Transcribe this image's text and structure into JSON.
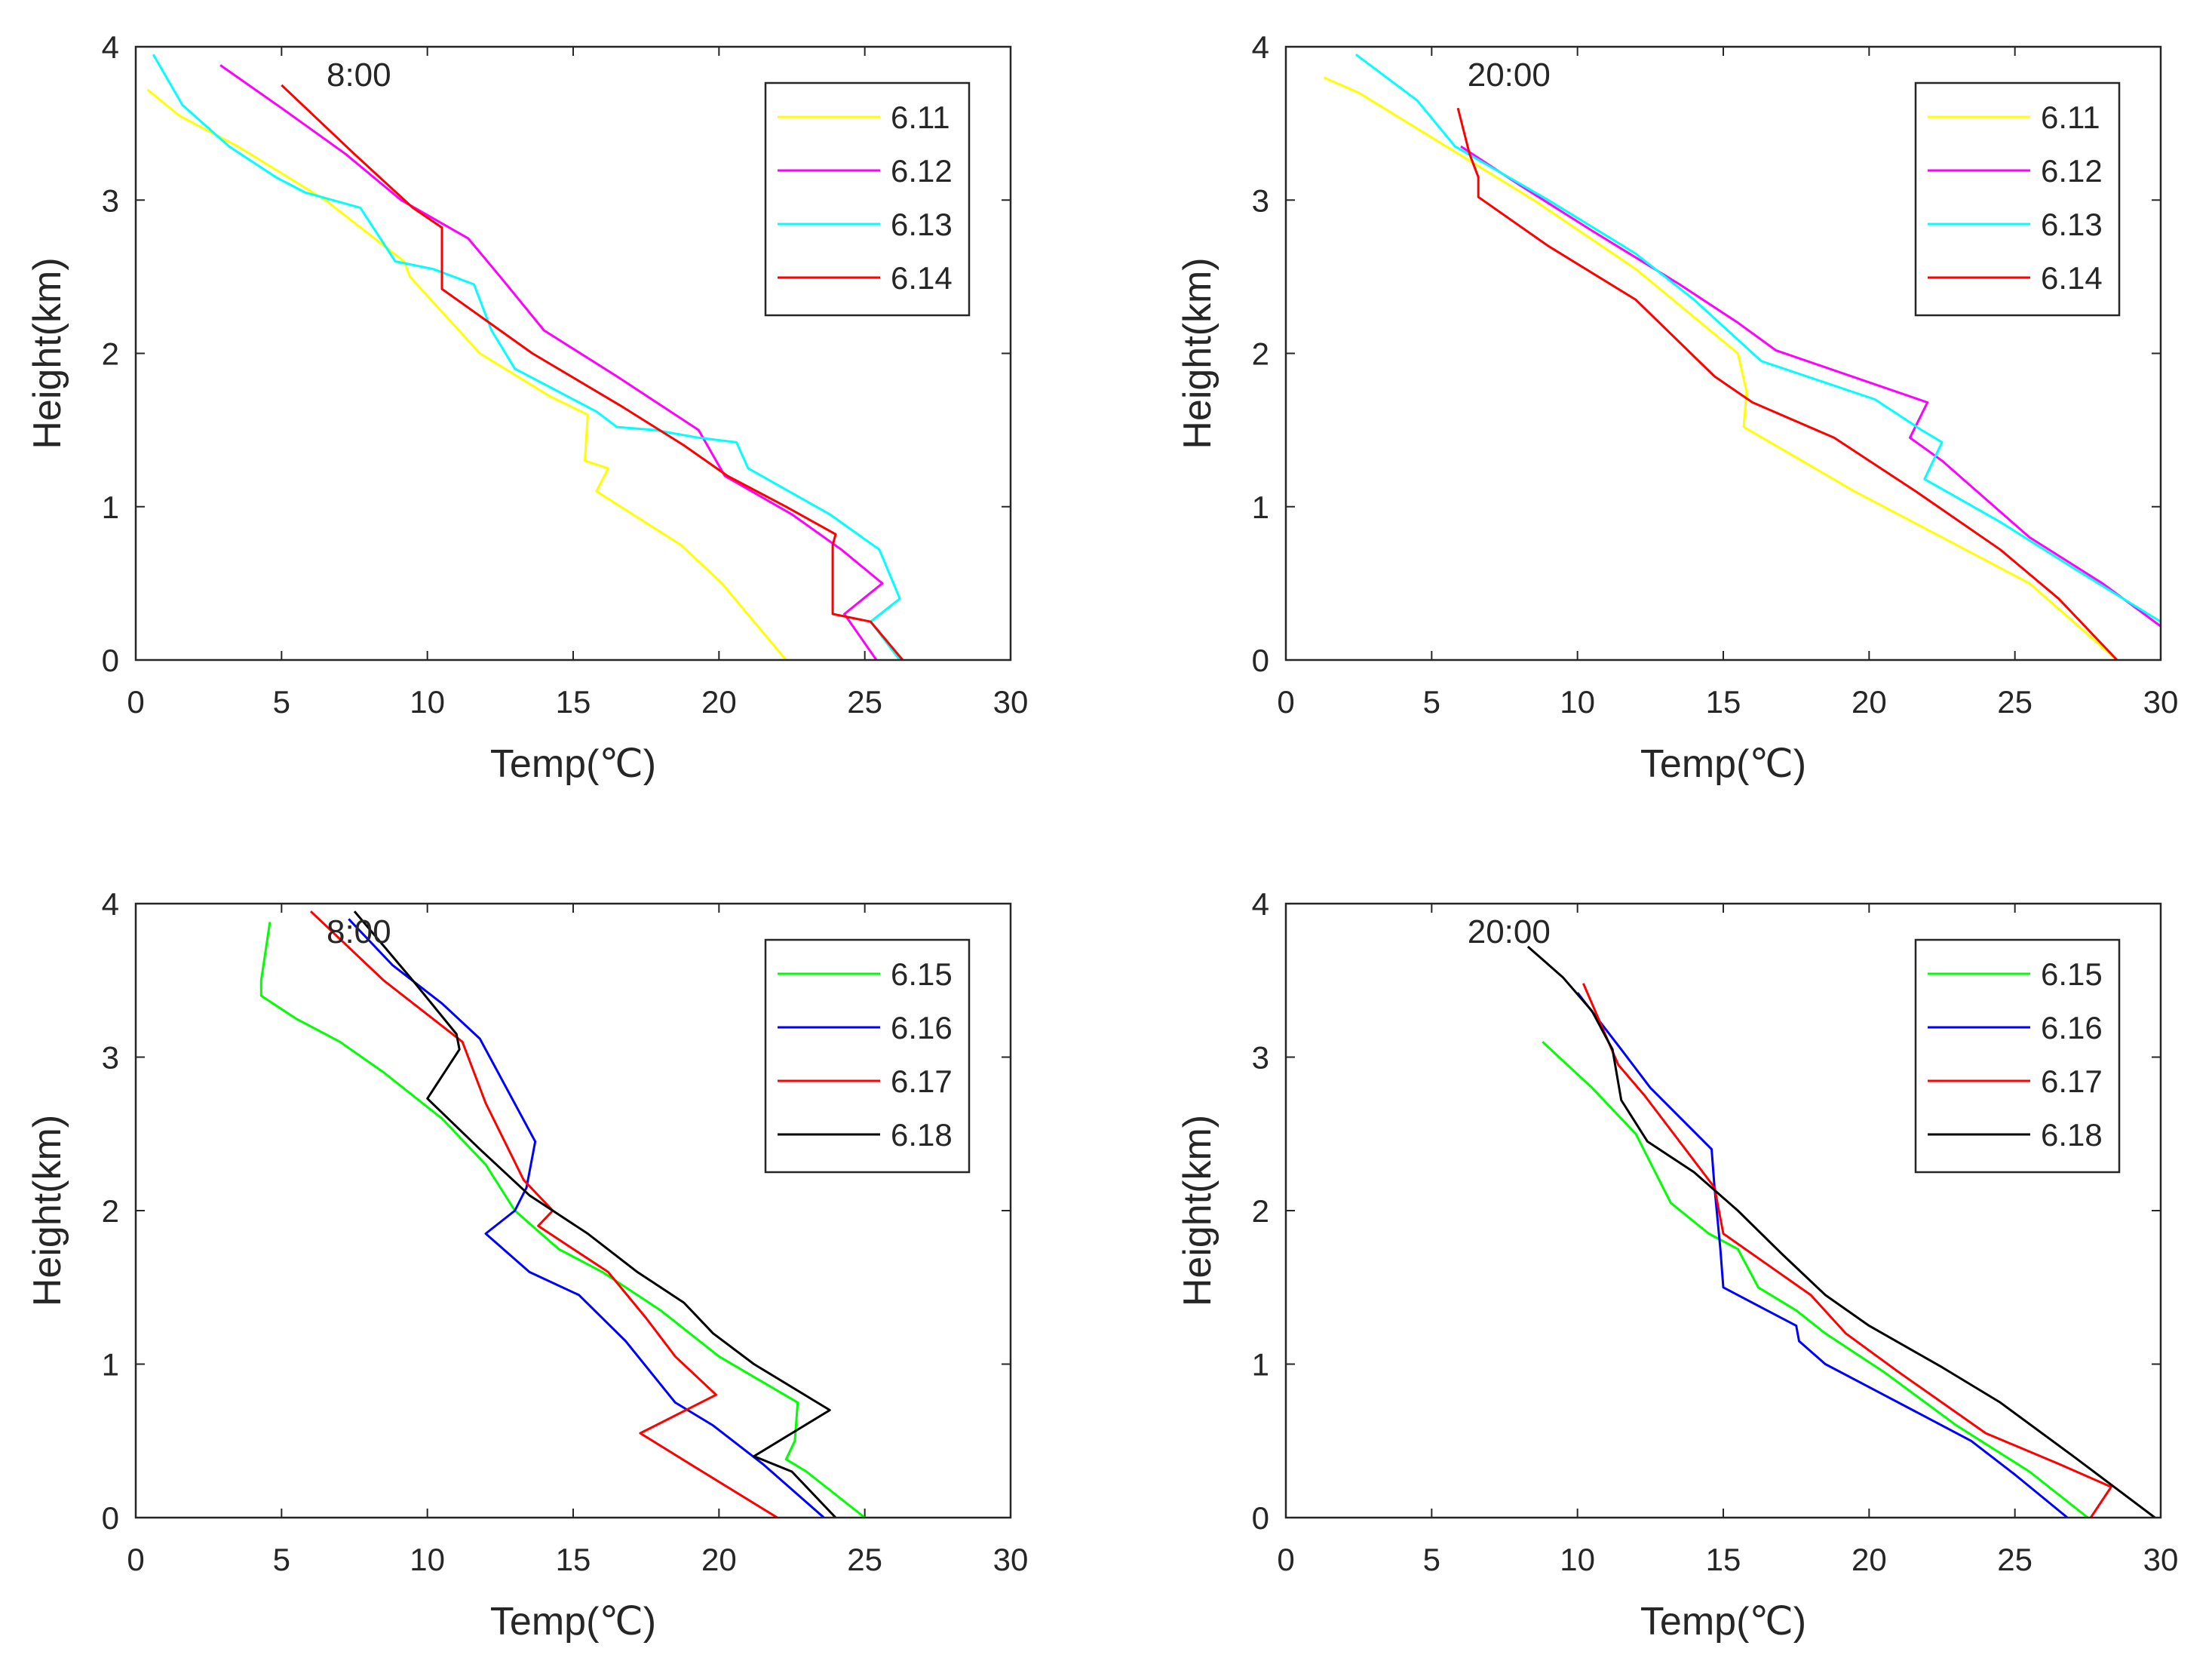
{
  "chart_data": [
    {
      "type": "line",
      "title": "8:00",
      "xlabel": "Temp(℃)",
      "ylabel": "Height(km)",
      "xlim": [
        0,
        30
      ],
      "ylim": [
        0,
        4
      ],
      "xticks": [
        "0",
        "5",
        "10",
        "15",
        "20",
        "25",
        "30"
      ],
      "yticks": [
        "0",
        "1",
        "2",
        "3",
        "4"
      ],
      "legend_position": "top-right",
      "series": [
        {
          "name": "6.11",
          "color": "#ffff00",
          "points": [
            [
              0.4,
              3.72
            ],
            [
              1.5,
              3.55
            ],
            [
              3.5,
              3.35
            ],
            [
              6.5,
              3.0
            ],
            [
              9.2,
              2.6
            ],
            [
              9.4,
              2.5
            ],
            [
              11.8,
              2.0
            ],
            [
              14.2,
              1.72
            ],
            [
              15.5,
              1.6
            ],
            [
              15.4,
              1.3
            ],
            [
              16.2,
              1.25
            ],
            [
              15.8,
              1.1
            ],
            [
              18.7,
              0.75
            ],
            [
              20.1,
              0.5
            ],
            [
              22.3,
              0.0
            ]
          ]
        },
        {
          "name": "6.12",
          "color": "#ff00ff",
          "points": [
            [
              2.9,
              3.88
            ],
            [
              5.0,
              3.6
            ],
            [
              7.2,
              3.3
            ],
            [
              9.1,
              3.0
            ],
            [
              11.4,
              2.75
            ],
            [
              12.5,
              2.5
            ],
            [
              14.0,
              2.15
            ],
            [
              16.5,
              1.85
            ],
            [
              19.3,
              1.5
            ],
            [
              20.2,
              1.2
            ],
            [
              22.5,
              0.95
            ],
            [
              24.2,
              0.72
            ],
            [
              25.6,
              0.5
            ],
            [
              24.3,
              0.3
            ],
            [
              25.4,
              0.0
            ]
          ]
        },
        {
          "name": "6.13",
          "color": "#00ffff",
          "points": [
            [
              0.6,
              3.95
            ],
            [
              1.6,
              3.62
            ],
            [
              3.2,
              3.35
            ],
            [
              4.8,
              3.15
            ],
            [
              5.8,
              3.05
            ],
            [
              7.7,
              2.95
            ],
            [
              8.9,
              2.6
            ],
            [
              10.2,
              2.55
            ],
            [
              11.6,
              2.45
            ],
            [
              12.2,
              2.15
            ],
            [
              13.0,
              1.9
            ],
            [
              15.8,
              1.62
            ],
            [
              16.5,
              1.52
            ],
            [
              17.8,
              1.5
            ],
            [
              19.3,
              1.45
            ],
            [
              20.6,
              1.42
            ],
            [
              21.0,
              1.25
            ],
            [
              23.8,
              0.95
            ],
            [
              25.5,
              0.72
            ],
            [
              26.2,
              0.4
            ],
            [
              25.2,
              0.25
            ],
            [
              26.2,
              0.0
            ]
          ]
        },
        {
          "name": "6.14",
          "color": "#ff0000",
          "points": [
            [
              5.0,
              3.75
            ],
            [
              7.5,
              3.3
            ],
            [
              9.5,
              2.95
            ],
            [
              10.5,
              2.82
            ],
            [
              10.5,
              2.42
            ],
            [
              13.6,
              2.0
            ],
            [
              16.7,
              1.65
            ],
            [
              18.8,
              1.4
            ],
            [
              20.3,
              1.2
            ],
            [
              22.3,
              1.0
            ],
            [
              24.0,
              0.82
            ],
            [
              23.9,
              0.75
            ],
            [
              23.9,
              0.3
            ],
            [
              25.2,
              0.25
            ],
            [
              26.3,
              0.0
            ]
          ]
        }
      ]
    },
    {
      "type": "line",
      "title": "20:00",
      "xlabel": "Temp(℃)",
      "ylabel": "Height(km)",
      "xlim": [
        0,
        30
      ],
      "ylim": [
        0,
        4
      ],
      "xticks": [
        "0",
        "5",
        "10",
        "15",
        "20",
        "25",
        "30"
      ],
      "yticks": [
        "0",
        "1",
        "2",
        "3",
        "4"
      ],
      "legend_position": "top-right",
      "series": [
        {
          "name": "6.11",
          "color": "#ffff00",
          "points": [
            [
              1.3,
              3.8
            ],
            [
              2.5,
              3.7
            ],
            [
              5.5,
              3.35
            ],
            [
              8.5,
              3.0
            ],
            [
              12.0,
              2.55
            ],
            [
              15.5,
              2.0
            ],
            [
              15.8,
              1.75
            ],
            [
              15.7,
              1.52
            ],
            [
              19.5,
              1.1
            ],
            [
              22.0,
              0.85
            ],
            [
              25.5,
              0.5
            ],
            [
              28.5,
              0.0
            ]
          ]
        },
        {
          "name": "6.12",
          "color": "#ff00ff",
          "points": [
            [
              6.0,
              3.35
            ],
            [
              8.0,
              3.1
            ],
            [
              10.5,
              2.8
            ],
            [
              13.5,
              2.45
            ],
            [
              15.5,
              2.2
            ],
            [
              16.8,
              2.02
            ],
            [
              22.0,
              1.68
            ],
            [
              21.4,
              1.45
            ],
            [
              22.5,
              1.3
            ],
            [
              25.5,
              0.8
            ],
            [
              28.0,
              0.5
            ],
            [
              30.0,
              0.22
            ]
          ]
        },
        {
          "name": "6.13",
          "color": "#00ffff",
          "points": [
            [
              2.4,
              3.95
            ],
            [
              4.5,
              3.65
            ],
            [
              5.8,
              3.35
            ],
            [
              9.0,
              3.0
            ],
            [
              12.0,
              2.65
            ],
            [
              14.0,
              2.35
            ],
            [
              16.3,
              1.95
            ],
            [
              20.2,
              1.7
            ],
            [
              21.8,
              1.5
            ],
            [
              22.5,
              1.42
            ],
            [
              21.9,
              1.18
            ],
            [
              24.5,
              0.9
            ],
            [
              27.0,
              0.6
            ],
            [
              30.0,
              0.25
            ]
          ]
        },
        {
          "name": "6.14",
          "color": "#ff0000",
          "points": [
            [
              5.9,
              3.6
            ],
            [
              6.3,
              3.3
            ],
            [
              6.6,
              3.15
            ],
            [
              6.6,
              3.02
            ],
            [
              9.0,
              2.7
            ],
            [
              12.0,
              2.35
            ],
            [
              14.7,
              1.85
            ],
            [
              16.0,
              1.68
            ],
            [
              18.8,
              1.45
            ],
            [
              21.6,
              1.1
            ],
            [
              24.5,
              0.72
            ],
            [
              26.5,
              0.4
            ],
            [
              28.5,
              0.0
            ]
          ]
        }
      ]
    },
    {
      "type": "line",
      "title": "8:00",
      "xlabel": "Temp(℃)",
      "ylabel": "Height(km)",
      "xlim": [
        0,
        30
      ],
      "ylim": [
        0,
        4
      ],
      "xticks": [
        "0",
        "5",
        "10",
        "15",
        "20",
        "25",
        "30"
      ],
      "yticks": [
        "0",
        "1",
        "2",
        "3",
        "4"
      ],
      "legend_position": "top-right",
      "series": [
        {
          "name": "6.15",
          "color": "#00ff00",
          "points": [
            [
              4.6,
              3.88
            ],
            [
              4.3,
              3.5
            ],
            [
              4.3,
              3.4
            ],
            [
              5.5,
              3.25
            ],
            [
              7.0,
              3.1
            ],
            [
              8.5,
              2.9
            ],
            [
              10.5,
              2.6
            ],
            [
              12.0,
              2.3
            ],
            [
              13.0,
              2.0
            ],
            [
              14.5,
              1.75
            ],
            [
              16.0,
              1.6
            ],
            [
              18.0,
              1.35
            ],
            [
              20.0,
              1.05
            ],
            [
              22.7,
              0.75
            ],
            [
              22.6,
              0.5
            ],
            [
              22.3,
              0.38
            ],
            [
              23.0,
              0.3
            ],
            [
              25.0,
              0.0
            ]
          ]
        },
        {
          "name": "6.16",
          "color": "#0000ff",
          "points": [
            [
              7.3,
              3.9
            ],
            [
              8.8,
              3.6
            ],
            [
              10.5,
              3.35
            ],
            [
              11.8,
              3.12
            ],
            [
              13.7,
              2.45
            ],
            [
              13.4,
              2.15
            ],
            [
              13.0,
              2.0
            ],
            [
              12.0,
              1.85
            ],
            [
              13.5,
              1.6
            ],
            [
              15.2,
              1.45
            ],
            [
              16.8,
              1.15
            ],
            [
              18.5,
              0.75
            ],
            [
              19.8,
              0.6
            ],
            [
              21.5,
              0.35
            ],
            [
              23.6,
              0.0
            ]
          ]
        },
        {
          "name": "6.17",
          "color": "#ff0000",
          "points": [
            [
              6.0,
              3.95
            ],
            [
              8.5,
              3.5
            ],
            [
              11.2,
              3.1
            ],
            [
              12.0,
              2.7
            ],
            [
              13.3,
              2.2
            ],
            [
              14.3,
              2.0
            ],
            [
              13.8,
              1.9
            ],
            [
              15.0,
              1.75
            ],
            [
              16.2,
              1.6
            ],
            [
              17.5,
              1.3
            ],
            [
              18.5,
              1.05
            ],
            [
              19.9,
              0.8
            ],
            [
              17.3,
              0.55
            ],
            [
              19.0,
              0.35
            ],
            [
              22.0,
              0.0
            ]
          ]
        },
        {
          "name": "6.18",
          "color": "#000000",
          "points": [
            [
              7.5,
              3.95
            ],
            [
              9.5,
              3.5
            ],
            [
              11.0,
              3.15
            ],
            [
              11.1,
              3.05
            ],
            [
              10.0,
              2.73
            ],
            [
              11.8,
              2.4
            ],
            [
              13.5,
              2.1
            ],
            [
              14.3,
              2.0
            ],
            [
              15.5,
              1.85
            ],
            [
              17.2,
              1.6
            ],
            [
              18.8,
              1.4
            ],
            [
              19.8,
              1.2
            ],
            [
              21.2,
              1.0
            ],
            [
              23.8,
              0.7
            ],
            [
              21.2,
              0.4
            ],
            [
              22.5,
              0.3
            ],
            [
              24.0,
              0.0
            ]
          ]
        }
      ]
    },
    {
      "type": "line",
      "title": "20:00",
      "xlabel": "Temp(℃)",
      "ylabel": "Height(km)",
      "xlim": [
        0,
        30
      ],
      "ylim": [
        0,
        4
      ],
      "xticks": [
        "0",
        "5",
        "10",
        "15",
        "20",
        "25",
        "30"
      ],
      "yticks": [
        "0",
        "1",
        "2",
        "3",
        "4"
      ],
      "legend_position": "top-right",
      "series": [
        {
          "name": "6.15",
          "color": "#00ff00",
          "points": [
            [
              8.8,
              3.1
            ],
            [
              10.5,
              2.8
            ],
            [
              12.0,
              2.5
            ],
            [
              13.2,
              2.05
            ],
            [
              14.5,
              1.85
            ],
            [
              15.5,
              1.75
            ],
            [
              16.2,
              1.5
            ],
            [
              17.5,
              1.35
            ],
            [
              18.5,
              1.2
            ],
            [
              20.5,
              0.95
            ],
            [
              23.0,
              0.6
            ],
            [
              25.5,
              0.3
            ],
            [
              27.5,
              0.0
            ]
          ]
        },
        {
          "name": "6.16",
          "color": "#0000ff",
          "points": [
            [
              10.0,
              3.42
            ],
            [
              11.5,
              3.05
            ],
            [
              12.5,
              2.8
            ],
            [
              14.6,
              2.4
            ],
            [
              14.7,
              2.15
            ],
            [
              14.9,
              1.75
            ],
            [
              15.0,
              1.5
            ],
            [
              16.5,
              1.35
            ],
            [
              17.5,
              1.25
            ],
            [
              17.6,
              1.15
            ],
            [
              18.5,
              1.0
            ],
            [
              20.5,
              0.8
            ],
            [
              23.5,
              0.5
            ],
            [
              25.0,
              0.28
            ],
            [
              26.8,
              0.0
            ]
          ]
        },
        {
          "name": "6.17",
          "color": "#ff0000",
          "points": [
            [
              10.2,
              3.48
            ],
            [
              11.4,
              2.95
            ],
            [
              12.3,
              2.75
            ],
            [
              13.5,
              2.45
            ],
            [
              14.7,
              2.15
            ],
            [
              15.0,
              1.85
            ],
            [
              16.5,
              1.65
            ],
            [
              18.0,
              1.45
            ],
            [
              19.2,
              1.2
            ],
            [
              21.0,
              0.95
            ],
            [
              24.0,
              0.55
            ],
            [
              26.5,
              0.35
            ],
            [
              28.3,
              0.2
            ],
            [
              27.6,
              0.0
            ]
          ]
        },
        {
          "name": "6.18",
          "color": "#000000",
          "points": [
            [
              8.3,
              3.72
            ],
            [
              9.5,
              3.52
            ],
            [
              10.5,
              3.3
            ],
            [
              11.2,
              3.05
            ],
            [
              11.5,
              2.72
            ],
            [
              12.4,
              2.45
            ],
            [
              14.0,
              2.25
            ],
            [
              15.5,
              2.0
            ],
            [
              17.0,
              1.72
            ],
            [
              18.5,
              1.45
            ],
            [
              20.0,
              1.25
            ],
            [
              22.5,
              0.98
            ],
            [
              24.5,
              0.75
            ],
            [
              27.0,
              0.4
            ],
            [
              29.8,
              0.0
            ]
          ]
        }
      ]
    }
  ]
}
